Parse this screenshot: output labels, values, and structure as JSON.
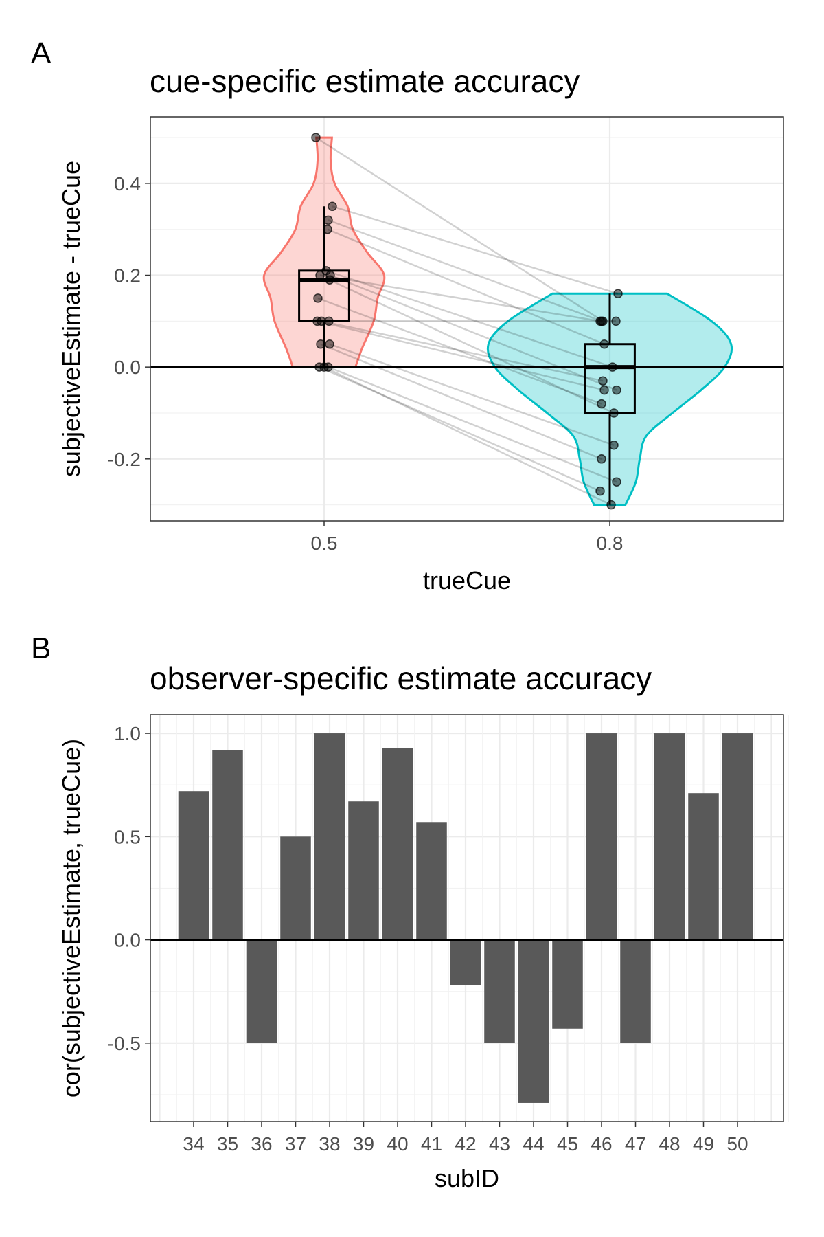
{
  "panels": {
    "a": {
      "letter": "A",
      "chart_data": {
        "type": "violin-box-scatter",
        "title": "cue-specific estimate accuracy",
        "xlabel": "trueCue",
        "ylabel": "subjectiveEstimate - trueCue",
        "categories": [
          "0.5",
          "0.8"
        ],
        "ylim": [
          -0.335,
          0.545
        ],
        "yticks": [
          -0.2,
          0.0,
          0.2,
          0.4
        ],
        "ytick_labels": [
          "-0.2",
          "0.0",
          "0.2",
          "0.4"
        ],
        "grid": true,
        "reference_line_y": 0,
        "colors": {
          "violin_0.5": "#f8766d",
          "violin_0.8": "#00bfc4"
        },
        "violins": [
          {
            "category": "0.5",
            "profile": [
              [
                0.0,
                0.24
              ],
              [
                0.04,
                0.29
              ],
              [
                0.1,
                0.38
              ],
              [
                0.15,
                0.41
              ],
              [
                0.2,
                0.46
              ],
              [
                0.25,
                0.33
              ],
              [
                0.3,
                0.22
              ],
              [
                0.35,
                0.18
              ],
              [
                0.4,
                0.08
              ],
              [
                0.45,
                0.05
              ],
              [
                0.5,
                0.06
              ]
            ]
          },
          {
            "category": "0.8",
            "profile": [
              [
                -0.3,
                0.12
              ],
              [
                -0.25,
                0.2
              ],
              [
                -0.2,
                0.23
              ],
              [
                -0.15,
                0.28
              ],
              [
                -0.1,
                0.48
              ],
              [
                -0.05,
                0.7
              ],
              [
                0.0,
                0.88
              ],
              [
                0.05,
                0.93
              ],
              [
                0.1,
                0.78
              ],
              [
                0.16,
                0.44
              ]
            ]
          }
        ],
        "boxes": [
          {
            "category": "0.5",
            "q1": 0.1,
            "median": 0.19,
            "q3": 0.21,
            "whisker_low": 0.0,
            "whisker_high": 0.35
          },
          {
            "category": "0.8",
            "q1": -0.1,
            "median": 0.0,
            "q3": 0.05,
            "whisker_low": -0.3,
            "whisker_high": 0.16
          }
        ],
        "pairs": [
          [
            0.5,
            0.1
          ],
          [
            0.35,
            0.16
          ],
          [
            0.32,
            0.1
          ],
          [
            0.3,
            0.05
          ],
          [
            0.21,
            0.0
          ],
          [
            0.2,
            -0.05
          ],
          [
            0.2,
            0.1
          ],
          [
            0.19,
            -0.1
          ],
          [
            0.15,
            -0.08
          ],
          [
            0.1,
            -0.03
          ],
          [
            0.1,
            0.1
          ],
          [
            0.1,
            -0.05
          ],
          [
            0.05,
            -0.2
          ],
          [
            0.05,
            -0.17
          ],
          [
            0.0,
            -0.27
          ],
          [
            0.0,
            -0.25
          ],
          [
            0.0,
            -0.3
          ]
        ]
      }
    },
    "b": {
      "letter": "B",
      "chart_data": {
        "type": "bar",
        "title": "observer-specific estimate accuracy",
        "xlabel": "subID",
        "ylabel": "cor(subjectiveEstimate, trueCue)",
        "categories": [
          "34",
          "35",
          "36",
          "37",
          "38",
          "39",
          "40",
          "41",
          "42",
          "43",
          "44",
          "45",
          "46",
          "47",
          "48",
          "49",
          "50"
        ],
        "values": [
          0.72,
          0.92,
          -0.5,
          0.5,
          1.0,
          0.67,
          0.93,
          0.57,
          -0.22,
          -0.5,
          -0.79,
          -0.43,
          1.0,
          -0.5,
          1.0,
          0.71,
          1.0
        ],
        "ylim": [
          -0.88,
          1.09
        ],
        "yticks": [
          -0.5,
          0.0,
          0.5,
          1.0
        ],
        "ytick_labels": [
          "-0.5",
          "0.0",
          "0.5",
          "1.0"
        ],
        "grid": true,
        "reference_line_y": 0,
        "colors": {
          "bar": "#595959"
        }
      }
    }
  }
}
